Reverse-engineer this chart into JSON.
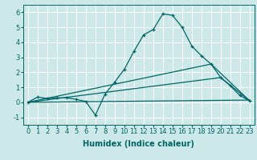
{
  "bg_color": "#cce8e8",
  "grid_color": "#ffffff",
  "line_color": "#006666",
  "xlabel": "Humidex (Indice chaleur)",
  "xlabel_fontsize": 7,
  "tick_fontsize": 6,
  "ylim": [
    -1.5,
    6.5
  ],
  "xlim": [
    -0.5,
    23.5
  ],
  "yticks": [
    -1,
    0,
    1,
    2,
    3,
    4,
    5,
    6
  ],
  "xticks": [
    0,
    1,
    2,
    3,
    4,
    5,
    6,
    7,
    8,
    9,
    10,
    11,
    12,
    13,
    14,
    15,
    16,
    17,
    18,
    19,
    20,
    21,
    22,
    23
  ],
  "line1_x": [
    0,
    1,
    2,
    3,
    4,
    5,
    6,
    7,
    8,
    9,
    10,
    11,
    12,
    13,
    14,
    15,
    16,
    17,
    18,
    19,
    20,
    21,
    22,
    23
  ],
  "line1_y": [
    0.0,
    0.35,
    0.25,
    0.3,
    0.3,
    0.2,
    0.05,
    -0.85,
    0.55,
    1.35,
    2.2,
    3.4,
    4.5,
    4.85,
    5.9,
    5.8,
    5.0,
    3.75,
    3.1,
    2.55,
    1.65,
    1.1,
    0.45,
    0.1
  ],
  "line2_x": [
    0,
    23
  ],
  "line2_y": [
    0.0,
    0.15
  ],
  "line3_x": [
    0,
    19,
    23
  ],
  "line3_y": [
    0.0,
    2.55,
    0.1
  ],
  "line4_x": [
    0,
    20,
    23
  ],
  "line4_y": [
    0.0,
    1.65,
    0.1
  ]
}
